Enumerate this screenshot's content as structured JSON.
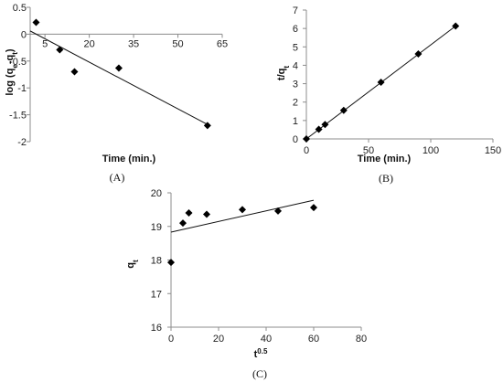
{
  "chart_data": [
    {
      "type": "scatter",
      "label": "(A)",
      "xlabel": "Time (min.)",
      "ylabel_main": "log (q",
      "ylabel_sub1": "e",
      "ylabel_mid": "-q",
      "ylabel_sub2": "t",
      "ylabel_end": ")",
      "xlim": [
        0,
        65
      ],
      "ylim": [
        -2,
        0.5
      ],
      "xticks": [
        5,
        20,
        35,
        50,
        65
      ],
      "yticks": [
        0.5,
        0,
        -0.5,
        -1,
        -1.5,
        -2
      ],
      "xaxis_at_y": 0,
      "points": [
        [
          2,
          0.22
        ],
        [
          10,
          -0.29
        ],
        [
          15,
          -0.7
        ],
        [
          30,
          -0.63
        ],
        [
          60,
          -1.7
        ]
      ],
      "fit_line": [
        [
          0,
          0.06
        ],
        [
          60,
          -1.68
        ]
      ],
      "grid": false,
      "legend": "none"
    },
    {
      "type": "scatter",
      "label": "(B)",
      "xlabel": "Time (min.)",
      "ylabel_main": "t/q",
      "ylabel_sub1": "t",
      "xlim": [
        0,
        150
      ],
      "ylim": [
        0,
        7
      ],
      "xticks": [
        0,
        50,
        100,
        150
      ],
      "yticks": [
        0,
        1,
        2,
        3,
        4,
        5,
        6,
        7
      ],
      "xaxis_at_y": 0,
      "points": [
        [
          0,
          0
        ],
        [
          10,
          0.52
        ],
        [
          15,
          0.78
        ],
        [
          30,
          1.55
        ],
        [
          60,
          3.08
        ],
        [
          90,
          4.62
        ],
        [
          120,
          6.13
        ]
      ],
      "fit_line": [
        [
          0,
          0
        ],
        [
          120,
          6.13
        ]
      ],
      "grid": false,
      "legend": "none"
    },
    {
      "type": "scatter",
      "label": "(C)",
      "xlabel_main": "t",
      "xlabel_sup": "0.5",
      "ylabel_main": "q",
      "ylabel_sub1": "t",
      "xlim": [
        0,
        80
      ],
      "ylim": [
        16,
        20
      ],
      "xticks": [
        0,
        20,
        40,
        60,
        80
      ],
      "yticks": [
        16,
        17,
        18,
        19,
        20
      ],
      "xaxis_at_y": 16,
      "points": [
        [
          0,
          17.93
        ],
        [
          5,
          19.1
        ],
        [
          7.5,
          19.4
        ],
        [
          15,
          19.36
        ],
        [
          30,
          19.5
        ],
        [
          45,
          19.46
        ],
        [
          60,
          19.56
        ]
      ],
      "fit_line": [
        [
          0,
          18.83
        ],
        [
          60,
          19.78
        ]
      ],
      "grid": false,
      "legend": "none"
    }
  ]
}
